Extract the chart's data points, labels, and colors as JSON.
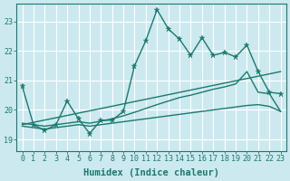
{
  "xlabel": "Humidex (Indice chaleur)",
  "bg_color": "#cce9f0",
  "grid_color": "#ffffff",
  "line_color": "#1a7a6e",
  "x_ticks": [
    0,
    1,
    2,
    3,
    4,
    5,
    6,
    7,
    8,
    9,
    10,
    11,
    12,
    13,
    14,
    15,
    16,
    17,
    18,
    19,
    20,
    21,
    22,
    23
  ],
  "y_ticks": [
    19,
    20,
    21,
    22,
    23
  ],
  "ylim": [
    18.6,
    23.6
  ],
  "xlim": [
    -0.5,
    23.5
  ],
  "line1_x": [
    0,
    1,
    2,
    3,
    4,
    5,
    6,
    7,
    8,
    9,
    10,
    11,
    12,
    13,
    14,
    15,
    16,
    17,
    18,
    19,
    20,
    21,
    22,
    23
  ],
  "line1_y": [
    20.8,
    19.5,
    19.3,
    19.5,
    20.3,
    19.7,
    19.2,
    19.65,
    19.65,
    19.95,
    21.5,
    22.35,
    23.4,
    22.75,
    22.4,
    21.85,
    22.45,
    21.85,
    21.95,
    21.8,
    22.2,
    21.3,
    20.6,
    20.55
  ],
  "line2_x": [
    0,
    1,
    2,
    3,
    4,
    5,
    6,
    7,
    8,
    9,
    10,
    11,
    12,
    13,
    14,
    15,
    16,
    17,
    18,
    19,
    20,
    21,
    22,
    23
  ],
  "line2_y": [
    19.55,
    19.5,
    19.45,
    19.5,
    19.55,
    19.6,
    19.55,
    19.62,
    19.7,
    19.8,
    19.92,
    20.05,
    20.18,
    20.3,
    20.42,
    20.5,
    20.6,
    20.7,
    20.78,
    20.88,
    21.3,
    20.6,
    20.55,
    19.95
  ],
  "line3_x": [
    0,
    1,
    2,
    3,
    4,
    5,
    6,
    7,
    8,
    9,
    10,
    11,
    12,
    13,
    14,
    15,
    16,
    17,
    18,
    19,
    20,
    21,
    22,
    23
  ],
  "line3_y": [
    19.45,
    19.4,
    19.35,
    19.4,
    19.45,
    19.5,
    19.45,
    19.5,
    19.55,
    19.6,
    19.65,
    19.7,
    19.75,
    19.8,
    19.85,
    19.9,
    19.95,
    20.0,
    20.05,
    20.1,
    20.15,
    20.18,
    20.12,
    19.95
  ],
  "line4_x": [
    0,
    23
  ],
  "line4_y": [
    19.5,
    21.3
  ],
  "marker_size": 3.5,
  "line_width": 1.0,
  "tick_fontsize": 6,
  "label_fontsize": 7.5
}
